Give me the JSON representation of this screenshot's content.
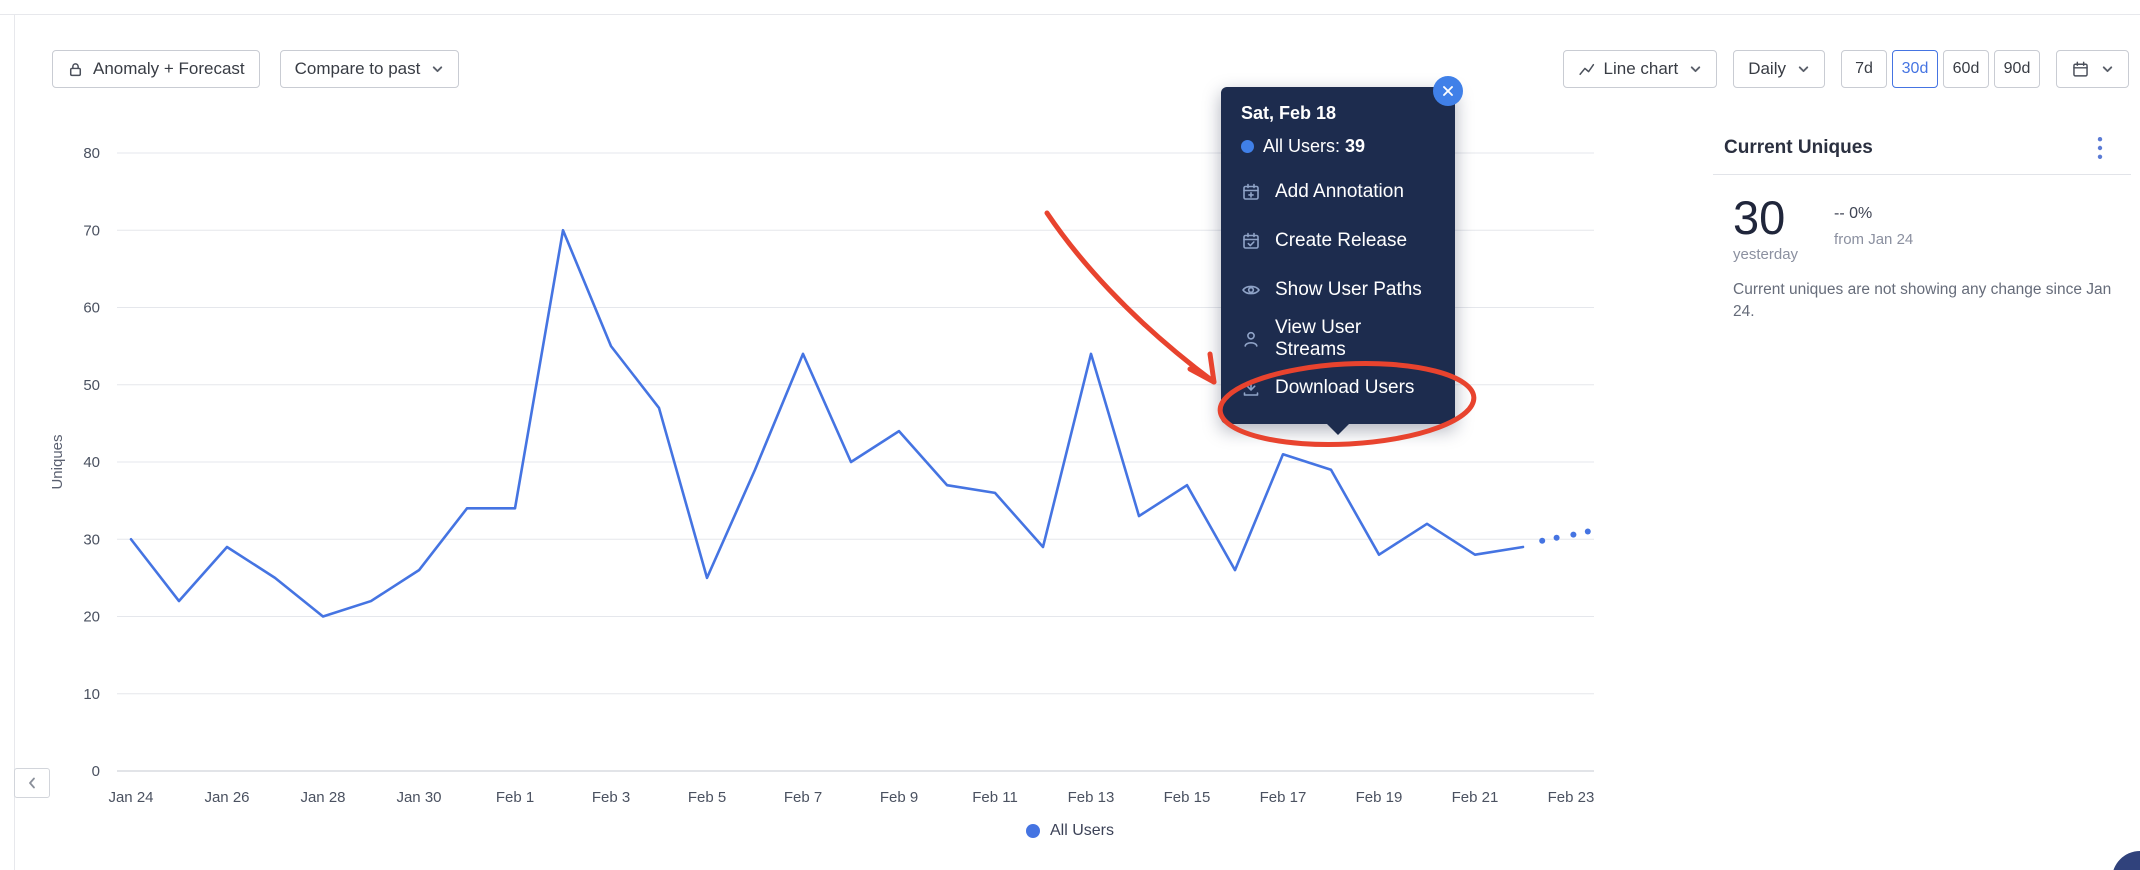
{
  "colors": {
    "accent": "#4574e2",
    "series": "#4574e2",
    "tooltip_bg": "#1d2c4e",
    "close_button": "#4080e8",
    "annotation": "#e8432e"
  },
  "toolbar": {
    "anomaly_label": "Anomaly + Forecast",
    "compare_label": "Compare to past",
    "chart_type_label": "Line chart",
    "interval_label": "Daily",
    "ranges": [
      "7d",
      "30d",
      "60d",
      "90d"
    ],
    "selected_range": "30d"
  },
  "tooltip": {
    "date": "Sat, Feb 18",
    "series_label": "All Users:",
    "series_value": "39",
    "menu_items": [
      {
        "icon": "annotation-icon",
        "label": "Add Annotation"
      },
      {
        "icon": "release-icon",
        "label": "Create Release"
      },
      {
        "icon": "eye-icon",
        "label": "Show User Paths"
      },
      {
        "icon": "user-icon",
        "label": "View User Streams"
      },
      {
        "icon": "download-icon",
        "label": "Download Users"
      }
    ]
  },
  "legend": {
    "label": "All Users"
  },
  "side_panel": {
    "title": "Current Uniques",
    "value": "30",
    "value_caption": "yesterday",
    "change": "-- 0%",
    "change_caption": "from Jan 24",
    "description": "Current uniques are not showing any change since Jan 24."
  },
  "chart_data": {
    "type": "line",
    "title": "",
    "xlabel": "",
    "ylabel": "Uniques",
    "ylim": [
      0,
      80
    ],
    "yticks": [
      0,
      10,
      20,
      30,
      40,
      50,
      60,
      70,
      80
    ],
    "grid": "horizontal",
    "legend_position": "bottom-center",
    "xtick_labels": [
      "Jan 24",
      "Jan 26",
      "Jan 28",
      "Jan 30",
      "Feb 1",
      "Feb 3",
      "Feb 5",
      "Feb 7",
      "Feb 9",
      "Feb 11",
      "Feb 13",
      "Feb 15",
      "Feb 17",
      "Feb 19",
      "Feb 21",
      "Feb 23"
    ],
    "series": [
      {
        "name": "All Users",
        "color": "#4574e2",
        "dates": [
          "Jan 24",
          "Jan 25",
          "Jan 26",
          "Jan 27",
          "Jan 28",
          "Jan 29",
          "Jan 30",
          "Jan 31",
          "Feb 1",
          "Feb 2",
          "Feb 3",
          "Feb 4",
          "Feb 5",
          "Feb 6",
          "Feb 7",
          "Feb 8",
          "Feb 9",
          "Feb 10",
          "Feb 11",
          "Feb 12",
          "Feb 13",
          "Feb 14",
          "Feb 15",
          "Feb 16",
          "Feb 17",
          "Feb 18",
          "Feb 19",
          "Feb 20",
          "Feb 21",
          "Feb 22"
        ],
        "values": [
          30,
          22,
          29,
          25,
          20,
          22,
          26,
          34,
          34,
          70,
          55,
          47,
          25,
          39,
          54,
          40,
          44,
          37,
          36,
          29,
          54,
          33,
          37,
          26,
          41,
          39,
          28,
          32,
          28,
          29
        ]
      }
    ],
    "forecast": {
      "style": "dotted",
      "x_day_offsets": [
        29.4,
        29.7,
        30.05,
        30.35
      ],
      "values": [
        29.8,
        30.2,
        30.6,
        31
      ]
    }
  }
}
